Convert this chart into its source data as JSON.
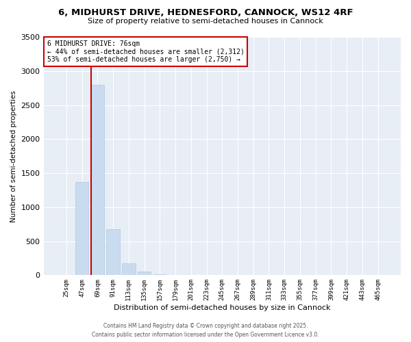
{
  "title_line1": "6, MIDHURST DRIVE, HEDNESFORD, CANNOCK, WS12 4RF",
  "title_line2": "Size of property relative to semi-detached houses in Cannock",
  "xlabel": "Distribution of semi-detached houses by size in Cannock",
  "ylabel": "Number of semi-detached properties",
  "categories": [
    "25sqm",
    "47sqm",
    "69sqm",
    "91sqm",
    "113sqm",
    "135sqm",
    "157sqm",
    "179sqm",
    "201sqm",
    "223sqm",
    "245sqm",
    "267sqm",
    "289sqm",
    "311sqm",
    "333sqm",
    "355sqm",
    "377sqm",
    "399sqm",
    "421sqm",
    "443sqm",
    "465sqm"
  ],
  "values": [
    0,
    1370,
    2800,
    680,
    175,
    50,
    15,
    0,
    0,
    0,
    0,
    0,
    0,
    0,
    0,
    0,
    0,
    0,
    0,
    0,
    0
  ],
  "bar_color": "#c9dcef",
  "bar_edge_color": "#b0c8e0",
  "property_line_index": 2,
  "annotation_title": "6 MIDHURST DRIVE: 76sqm",
  "annotation_line1": "← 44% of semi-detached houses are smaller (2,312)",
  "annotation_line2": "53% of semi-detached houses are larger (2,750) →",
  "annotation_box_color": "#ffffff",
  "annotation_box_edge": "#cc0000",
  "red_line_color": "#cc0000",
  "ylim_max": 3500,
  "yticks": [
    0,
    500,
    1000,
    1500,
    2000,
    2500,
    3000,
    3500
  ],
  "background_color": "#ffffff",
  "plot_bg_color": "#e8eef5",
  "grid_color": "#ffffff",
  "footer_line1": "Contains HM Land Registry data © Crown copyright and database right 2025.",
  "footer_line2": "Contains public sector information licensed under the Open Government Licence v3.0."
}
